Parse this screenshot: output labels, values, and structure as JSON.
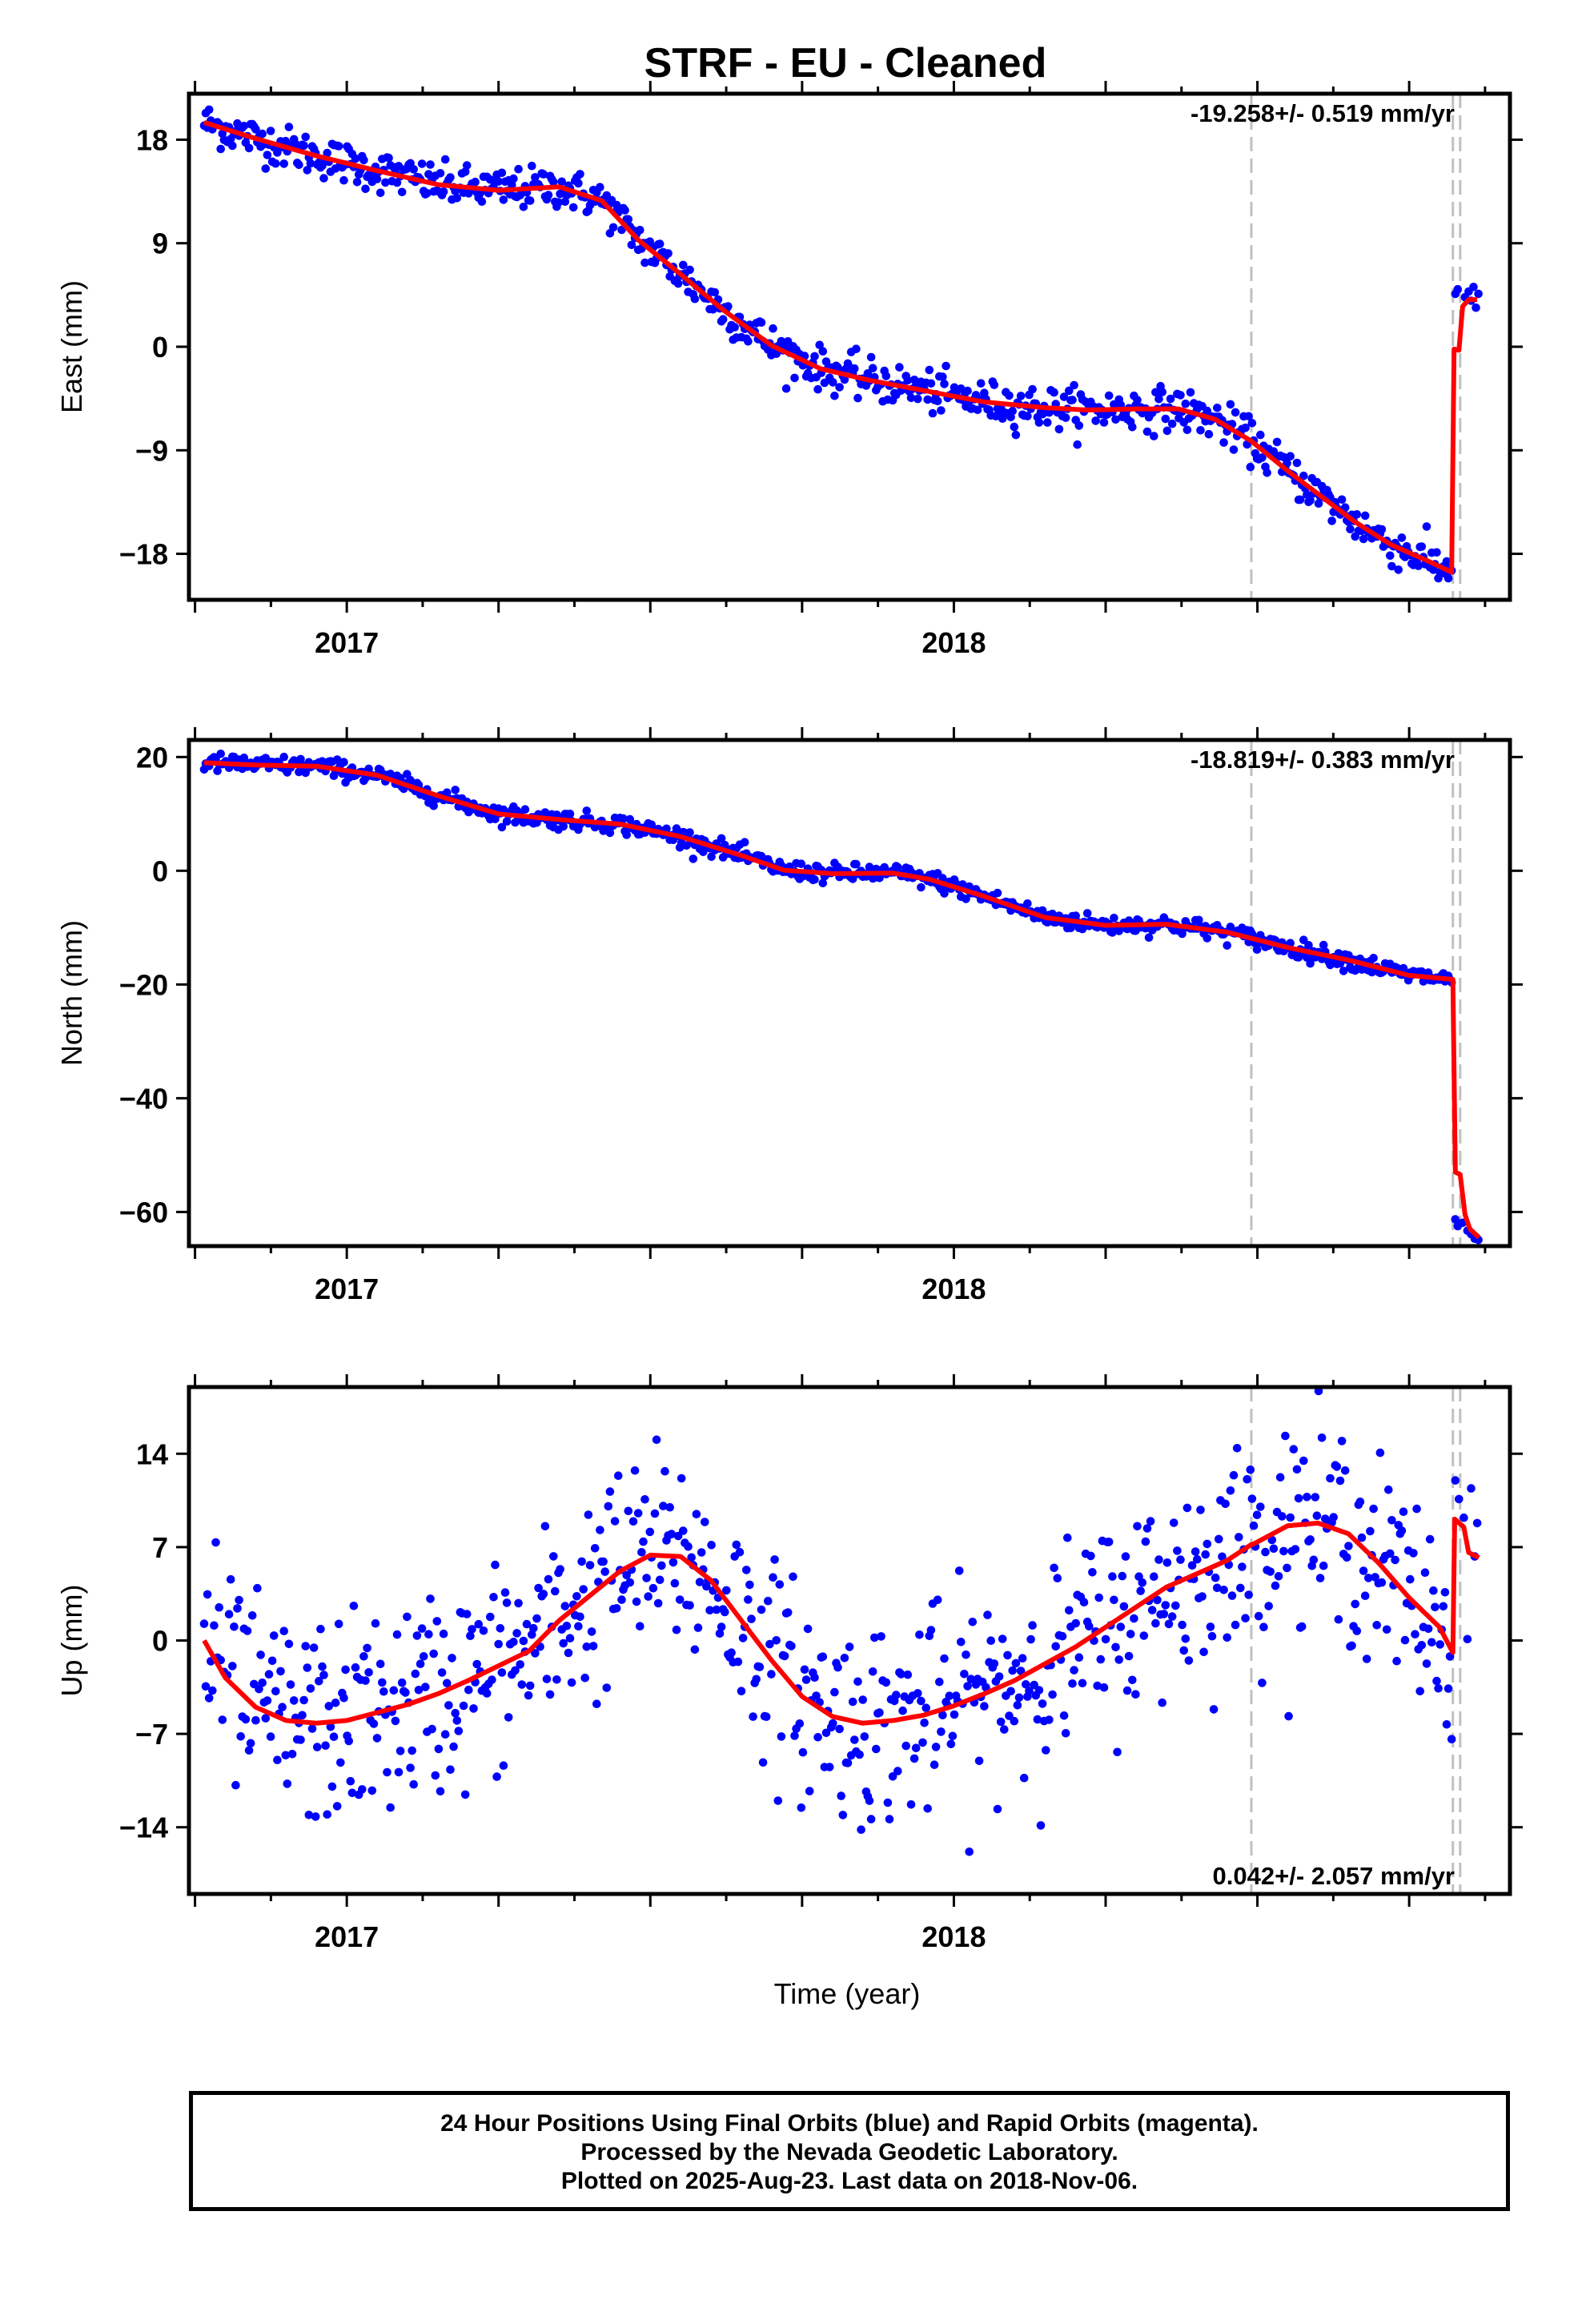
{
  "figure": {
    "title": "STRF  - EU - Cleaned",
    "xlabel": "Time (year)",
    "footer": [
      "24 Hour Positions Using Final Orbits (blue) and Rapid Orbits (magenta).",
      "Processed by the Nevada Geodetic Laboratory.",
      "Plotted on 2025-Aug-23. Last data on 2018-Nov-06."
    ],
    "colors": {
      "points": "#0000ff",
      "fit": "#ff0000",
      "breaks": "#c0c0c0",
      "frame": "#000000"
    }
  },
  "chart_data": [
    {
      "type": "scatter",
      "ylabel": "East (mm)",
      "xlim": [
        2016.74,
        2018.916
      ],
      "ylim": [
        -22.0,
        22.0
      ],
      "xticks": [
        2017,
        2018
      ],
      "yticks": [
        18,
        9,
        0,
        -9,
        -18
      ],
      "ytick_labels": [
        "18",
        "9",
        "0",
        "−9",
        "−18"
      ],
      "rate_label": "-19.258+/- 0.519 mm/yr",
      "rate_position": "top-right",
      "break_lines": [
        2018.49,
        2018.822,
        2018.834
      ],
      "fit": {
        "x": [
          2016.765,
          2016.85,
          2016.95,
          2017.05,
          2017.15,
          2017.25,
          2017.35,
          2017.42,
          2017.48,
          2017.55,
          2017.62,
          2017.7,
          2017.78,
          2017.86,
          2017.95,
          2018.05,
          2018.15,
          2018.22,
          2018.3,
          2018.37,
          2018.43,
          2018.49,
          2018.55,
          2018.6,
          2018.66,
          2018.72,
          2018.78,
          2018.82,
          2018.824,
          2018.832,
          2018.838,
          2018.848,
          2018.862
        ],
        "y": [
          19.5,
          18.1,
          16.6,
          15.3,
          14.1,
          13.6,
          13.9,
          12.7,
          9.3,
          6.3,
          3.2,
          0.1,
          -1.9,
          -2.9,
          -3.8,
          -4.8,
          -5.3,
          -5.5,
          -5.4,
          -5.4,
          -6.3,
          -8.2,
          -10.8,
          -12.8,
          -15.2,
          -17.2,
          -18.6,
          -19.6,
          -0.2,
          -0.3,
          3.5,
          4.1,
          4.1
        ]
      },
      "noise": 0.9,
      "tail_points": {
        "x": [
          2018.826,
          2018.83,
          2018.842,
          2018.848,
          2018.852,
          2018.856,
          2018.86,
          2018.864
        ],
        "y": [
          4.6,
          5.0,
          4.3,
          4.8,
          4.0,
          5.2,
          3.4,
          4.6
        ]
      }
    },
    {
      "type": "scatter",
      "ylabel": "North (mm)",
      "xlim": [
        2016.74,
        2018.916
      ],
      "ylim": [
        -66.0,
        23.0
      ],
      "xticks": [
        2017,
        2018
      ],
      "yticks": [
        20,
        0,
        -20,
        -40,
        -60
      ],
      "ytick_labels": [
        "20",
        "0",
        "−20",
        "−40",
        "−60"
      ],
      "rate_label": "-18.819+/- 0.383 mm/yr",
      "rate_position": "top-right",
      "break_lines": [
        2018.49,
        2018.822,
        2018.834
      ],
      "fit": {
        "x": [
          2016.765,
          2016.85,
          2016.95,
          2017.05,
          2017.15,
          2017.25,
          2017.35,
          2017.45,
          2017.55,
          2017.65,
          2017.72,
          2017.8,
          2017.9,
          2017.96,
          2018.05,
          2018.15,
          2018.25,
          2018.35,
          2018.45,
          2018.55,
          2018.65,
          2018.75,
          2018.8,
          2018.822,
          2018.826,
          2018.834,
          2018.842,
          2018.85,
          2018.865
        ],
        "y": [
          19.0,
          18.6,
          18.4,
          16.8,
          13.2,
          10.0,
          9.0,
          8.2,
          6.0,
          2.7,
          0.1,
          -0.5,
          -0.4,
          -1.5,
          -4.5,
          -8.2,
          -9.6,
          -9.4,
          -10.8,
          -13.5,
          -15.7,
          -18.4,
          -18.9,
          -19.1,
          -53.0,
          -53.4,
          -60.5,
          -63.0,
          -64.5
        ]
      },
      "noise": 0.8,
      "tail_points": {
        "x": [
          2018.826,
          2018.83,
          2018.838,
          2018.846,
          2018.852,
          2018.858,
          2018.864
        ],
        "y": [
          -61.3,
          -62.5,
          -61.9,
          -63.3,
          -63.9,
          -64.7,
          -64.9
        ]
      }
    },
    {
      "type": "scatter",
      "ylabel": "Up (mm)",
      "xlim": [
        2016.74,
        2018.916
      ],
      "ylim": [
        -19.0,
        19.0
      ],
      "xticks": [
        2017,
        2018
      ],
      "yticks": [
        14,
        7,
        0,
        -7,
        -14
      ],
      "ytick_labels": [
        "14",
        "7",
        "0",
        "−7",
        "−14"
      ],
      "rate_label": "0.042+/- 2.057 mm/yr",
      "rate_position": "bottom-right",
      "break_lines": [
        2018.49,
        2018.822,
        2018.834
      ],
      "fit": {
        "x": [
          2016.765,
          2016.8,
          2016.85,
          2016.9,
          2016.95,
          2017.0,
          2017.05,
          2017.1,
          2017.15,
          2017.2,
          2017.3,
          2017.35,
          2017.45,
          2017.5,
          2017.55,
          2017.6,
          2017.65,
          2017.7,
          2017.75,
          2017.8,
          2017.85,
          2017.9,
          2017.95,
          2018.0,
          2018.05,
          2018.1,
          2018.2,
          2018.3,
          2018.35,
          2018.4,
          2018.45,
          2018.49,
          2018.492,
          2018.55,
          2018.6,
          2018.65,
          2018.7,
          2018.75,
          2018.8,
          2018.822,
          2018.825,
          2018.84,
          2018.848,
          2018.865
        ],
        "y": [
          0.0,
          -2.8,
          -5.0,
          -6.0,
          -6.2,
          -6.0,
          -5.4,
          -4.8,
          -4.0,
          -3.0,
          -0.8,
          1.5,
          5.2,
          6.4,
          6.3,
          4.5,
          1.5,
          -1.5,
          -4.2,
          -5.7,
          -6.2,
          -6.0,
          -5.6,
          -4.9,
          -4.0,
          -3.0,
          -0.5,
          2.5,
          4.0,
          5.0,
          6.0,
          7.2,
          7.2,
          8.6,
          8.8,
          8.0,
          5.8,
          3.2,
          1.0,
          -0.9,
          9.1,
          8.5,
          6.6,
          6.2
        ]
      },
      "noise": 3.8,
      "tail_points": {
        "x": [
          2018.826,
          2018.832,
          2018.84,
          2018.846,
          2018.852,
          2018.858,
          2018.862
        ],
        "y": [
          12.0,
          10.6,
          9.2,
          0.1,
          11.4,
          6.3,
          8.8
        ]
      }
    }
  ]
}
